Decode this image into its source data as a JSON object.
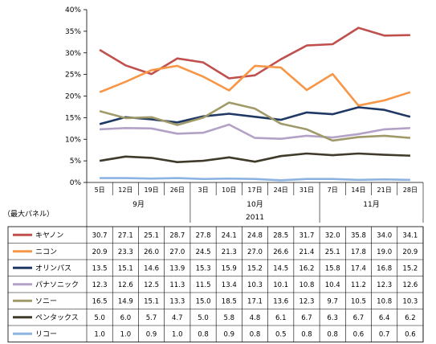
{
  "chart_data": {
    "type": "line",
    "y_unit": "%",
    "ylim": [
      0,
      40
    ],
    "yticks": [
      "0%",
      "5%",
      "10%",
      "15%",
      "20%",
      "25%",
      "30%",
      "35%",
      "40%"
    ],
    "ytick_values": [
      0,
      5,
      10,
      15,
      20,
      25,
      30,
      35,
      40
    ],
    "grid": false,
    "categories": [
      "5日",
      "12日",
      "19日",
      "26日",
      "3日",
      "10日",
      "17日",
      "24日",
      "31日",
      "7日",
      "14日",
      "21日",
      "28日"
    ],
    "month_groups": [
      {
        "label": "9月",
        "count": 4
      },
      {
        "label": "10月",
        "count": 5
      },
      {
        "label": "11月",
        "count": 4
      }
    ],
    "year_label": "2011",
    "row_header_label": "（最大パネル）",
    "series": [
      {
        "name": "キヤノン",
        "color": "#c0504d",
        "values": [
          30.7,
          27.1,
          25.1,
          28.7,
          27.8,
          24.1,
          24.8,
          28.5,
          31.7,
          32.0,
          35.8,
          34.0,
          34.1
        ],
        "labels": [
          "30.7",
          "27.1",
          "25.1",
          "28.7",
          "27.8",
          "24.1",
          "24.8",
          "28.5",
          "31.7",
          "32.0",
          "35.8",
          "34.0",
          "34.1"
        ]
      },
      {
        "name": "ニコン",
        "color": "#f79646",
        "values": [
          20.9,
          23.3,
          26.0,
          27.0,
          24.5,
          21.3,
          27.0,
          26.6,
          21.4,
          25.1,
          17.8,
          19.0,
          20.9
        ],
        "labels": [
          "20.9",
          "23.3",
          "26.0",
          "27.0",
          "24.5",
          "21.3",
          "27.0",
          "26.6",
          "21.4",
          "25.1",
          "17.8",
          "19.0",
          "20.9"
        ]
      },
      {
        "name": "オリンパス",
        "color": "#1f3864",
        "values": [
          13.5,
          15.1,
          14.6,
          13.9,
          15.3,
          15.9,
          15.2,
          14.5,
          16.2,
          15.8,
          17.4,
          16.8,
          15.2
        ],
        "labels": [
          "13.5",
          "15.1",
          "14.6",
          "13.9",
          "15.3",
          "15.9",
          "15.2",
          "14.5",
          "16.2",
          "15.8",
          "17.4",
          "16.8",
          "15.2"
        ]
      },
      {
        "name": "パナソニック",
        "color": "#b3a2c7",
        "values": [
          12.3,
          12.6,
          12.5,
          11.3,
          11.5,
          13.4,
          10.3,
          10.1,
          10.8,
          10.4,
          11.2,
          12.3,
          12.6
        ],
        "labels": [
          "12.3",
          "12.6",
          "12.5",
          "11.3",
          "11.5",
          "13.4",
          "10.3",
          "10.1",
          "10.8",
          "10.4",
          "11.2",
          "12.3",
          "12.6"
        ]
      },
      {
        "name": "ソニー",
        "color": "#a09a6a",
        "values": [
          16.5,
          14.9,
          15.1,
          13.3,
          15.0,
          18.5,
          17.1,
          13.6,
          12.3,
          9.7,
          10.5,
          10.8,
          10.3
        ],
        "labels": [
          "16.5",
          "14.9",
          "15.1",
          "13.3",
          "15.0",
          "18.5",
          "17.1",
          "13.6",
          "12.3",
          "9.7",
          "10.5",
          "10.8",
          "10.3"
        ]
      },
      {
        "name": "ペンタックス",
        "color": "#3f3a2a",
        "values": [
          5.0,
          6.0,
          5.7,
          4.7,
          5.0,
          5.8,
          4.8,
          6.1,
          6.7,
          6.3,
          6.7,
          6.4,
          6.2
        ],
        "labels": [
          "5.0",
          "6.0",
          "5.7",
          "4.7",
          "5.0",
          "5.8",
          "4.8",
          "6.1",
          "6.7",
          "6.3",
          "6.7",
          "6.4",
          "6.2"
        ]
      },
      {
        "name": "リコー",
        "color": "#8db3e2",
        "values": [
          1.0,
          1.0,
          0.9,
          1.0,
          0.8,
          0.9,
          0.8,
          0.5,
          0.8,
          0.8,
          0.6,
          0.7,
          0.6
        ],
        "labels": [
          "1.0",
          "1.0",
          "0.9",
          "1.0",
          "0.8",
          "0.9",
          "0.8",
          "0.5",
          "0.8",
          "0.8",
          "0.6",
          "0.7",
          "0.6"
        ]
      }
    ]
  }
}
